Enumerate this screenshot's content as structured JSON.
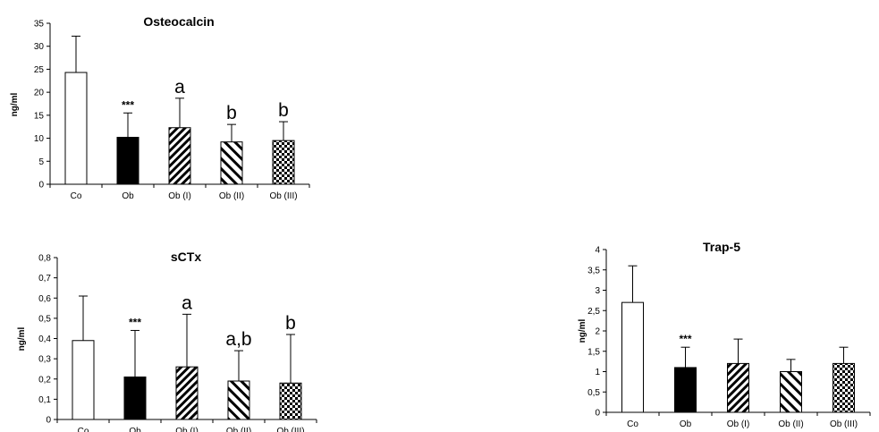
{
  "chart_data": [
    {
      "type": "bar",
      "title": "Osteocalcin",
      "ylabel": "ng/ml",
      "ylim": [
        0,
        35
      ],
      "yticks": [
        "0",
        "5",
        "10",
        "15",
        "20",
        "25",
        "30",
        "35"
      ],
      "categories": [
        "Co",
        "Ob",
        "Ob (I)",
        "Ob (II)",
        "Ob (III)"
      ],
      "values": [
        24.3,
        10.2,
        12.3,
        9.2,
        9.5
      ],
      "errors": [
        7.9,
        5.3,
        6.4,
        3.8,
        4.1
      ],
      "annotations": [
        "",
        "***",
        "a",
        "b",
        "b"
      ],
      "fills": [
        "white",
        "black",
        "diagonal",
        "diagonal-wide",
        "checker"
      ]
    },
    {
      "type": "bar",
      "title": "sCTx",
      "ylabel": "ng/ml",
      "ylim": [
        0,
        0.8
      ],
      "yticks": [
        "0",
        "0,1",
        "0,2",
        "0,3",
        "0,4",
        "0,5",
        "0,6",
        "0,7",
        "0,8"
      ],
      "categories": [
        "Co",
        "Ob",
        "Ob (I)",
        "Ob (II)",
        "Ob (III)"
      ],
      "values": [
        0.39,
        0.21,
        0.26,
        0.19,
        0.18
      ],
      "errors": [
        0.22,
        0.23,
        0.26,
        0.15,
        0.24
      ],
      "annotations": [
        "",
        "***",
        "a",
        "a,b",
        "b"
      ],
      "fills": [
        "white",
        "black",
        "diagonal",
        "diagonal-wide",
        "checker"
      ]
    },
    {
      "type": "bar",
      "title": "Trap-5",
      "ylabel": "ng/ml",
      "ylim": [
        0,
        4
      ],
      "yticks": [
        "0",
        "0,5",
        "1",
        "1,5",
        "2",
        "2,5",
        "3",
        "3,5",
        "4"
      ],
      "categories": [
        "Co",
        "Ob",
        "Ob (I)",
        "Ob (II)",
        "Ob (III)"
      ],
      "values": [
        2.7,
        1.1,
        1.2,
        1.0,
        1.2
      ],
      "errors": [
        0.9,
        0.5,
        0.6,
        0.3,
        0.4
      ],
      "annotations": [
        "",
        "***",
        "",
        "",
        ""
      ],
      "fills": [
        "white",
        "black",
        "diagonal",
        "diagonal-wide",
        "checker"
      ]
    }
  ]
}
